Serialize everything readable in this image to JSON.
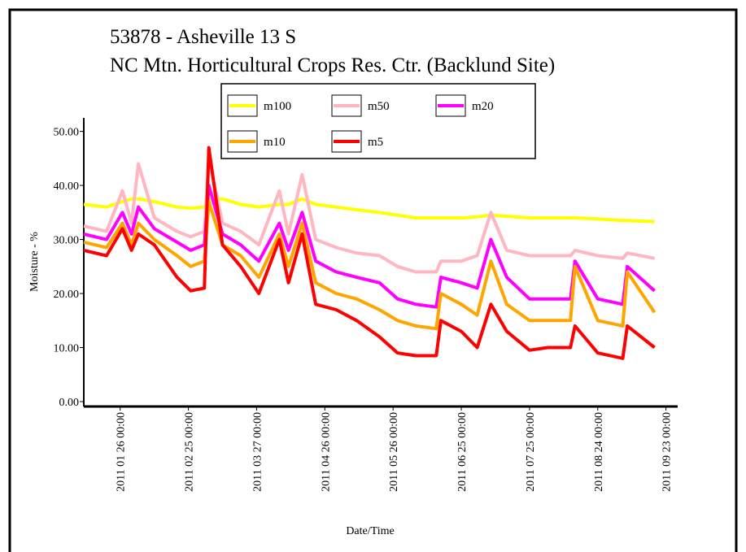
{
  "chart_data": {
    "type": "line",
    "title": "53878 - Asheville 13 S",
    "subtitle": "NC Mtn. Horticultural Crops Res. Ctr. (Backlund Site)",
    "x_label": "Date/Time",
    "y_label": "Moisture - %",
    "x": [
      "2011-01-10",
      "2011-01-20",
      "2011-01-27",
      "2011-01-31",
      "2011-02-03",
      "2011-02-10",
      "2011-02-20",
      "2011-02-26",
      "2011-03-04",
      "2011-03-06",
      "2011-03-12",
      "2011-03-20",
      "2011-03-28",
      "2011-04-06",
      "2011-04-10",
      "2011-04-16",
      "2011-04-22",
      "2011-05-01",
      "2011-05-10",
      "2011-05-20",
      "2011-05-28",
      "2011-06-05",
      "2011-06-14",
      "2011-06-16",
      "2011-06-25",
      "2011-07-02",
      "2011-07-08",
      "2011-07-15",
      "2011-07-25",
      "2011-08-02",
      "2011-08-12",
      "2011-08-14",
      "2011-08-24",
      "2011-09-04",
      "2011-09-06",
      "2011-09-18"
    ],
    "xlim": [
      "2011-01-10",
      "2011-09-26"
    ],
    "xticks": [
      {
        "value": "2011-01-26",
        "label": "2011 01 26 00:00"
      },
      {
        "value": "2011-02-25",
        "label": "2011 02 25 00:00"
      },
      {
        "value": "2011-03-27",
        "label": "2011 03 27 00:00"
      },
      {
        "value": "2011-04-26",
        "label": "2011 04 26 00:00"
      },
      {
        "value": "2011-05-26",
        "label": "2011 05 26 00:00"
      },
      {
        "value": "2011-06-25",
        "label": "2011 06 25 00:00"
      },
      {
        "value": "2011-07-25",
        "label": "2011 07 25 00:00"
      },
      {
        "value": "2011-08-24",
        "label": "2011 08 24 00:00"
      },
      {
        "value": "2011-09-23",
        "label": "2011 09 23 00:00"
      }
    ],
    "ylim": [
      0,
      52.5
    ],
    "yticks": [
      {
        "value": 0,
        "label": "0.00"
      },
      {
        "value": 10,
        "label": "10.00"
      },
      {
        "value": 20,
        "label": "20.00"
      },
      {
        "value": 30,
        "label": "30.00"
      },
      {
        "value": 40,
        "label": "40.00"
      },
      {
        "value": 50,
        "label": "50.00"
      }
    ],
    "series": [
      {
        "name": "m100",
        "color": "#ffff00",
        "values": [
          36.5,
          36,
          37,
          37.5,
          37.5,
          37,
          36,
          35.8,
          36,
          37.5,
          37.5,
          36.5,
          36,
          36.5,
          36.5,
          37.5,
          36.5,
          36,
          35.5,
          35,
          34.5,
          34,
          34,
          34,
          34,
          34.2,
          34.5,
          34.3,
          34,
          34,
          34,
          34,
          33.8,
          33.5,
          33.5,
          33.3
        ]
      },
      {
        "name": "m50",
        "color": "#ffb6c1",
        "values": [
          32.5,
          31.5,
          39,
          33,
          44,
          34,
          31.5,
          30.5,
          31.5,
          45,
          33,
          31.5,
          29,
          39,
          31,
          42,
          30,
          28.5,
          27.5,
          27,
          25,
          24,
          24,
          26,
          26,
          27,
          35,
          28,
          27,
          27,
          27,
          28,
          27,
          26.5,
          27.5,
          26.5
        ]
      },
      {
        "name": "m20",
        "color": "#ff00ff",
        "values": [
          31,
          30,
          35,
          31,
          36,
          32,
          29.5,
          28,
          29,
          40,
          31,
          29,
          26,
          33,
          28,
          35,
          26,
          24,
          23,
          22,
          19,
          18,
          17.5,
          23,
          22,
          21,
          30,
          23,
          19,
          19,
          19,
          26,
          19,
          18,
          25,
          20.5
        ]
      },
      {
        "name": "m10",
        "color": "#ffa500",
        "values": [
          29.5,
          28.5,
          33,
          29,
          33,
          30,
          27,
          25,
          26,
          37,
          29,
          27,
          23,
          31,
          25,
          33,
          22,
          20,
          19,
          17,
          15,
          14,
          13.5,
          20,
          18,
          16,
          26,
          18,
          15,
          15,
          15,
          25,
          15,
          14,
          24,
          16.5
        ]
      },
      {
        "name": "m5",
        "color": "#ff0000",
        "values": [
          28,
          27,
          32,
          28,
          31,
          29,
          23,
          20.5,
          21,
          47,
          29,
          25,
          20,
          30,
          22,
          31,
          18,
          17,
          15,
          12,
          9,
          8.5,
          8.5,
          15,
          13,
          10,
          18,
          13,
          9.5,
          10,
          10,
          14,
          9,
          8,
          14,
          10
        ]
      }
    ]
  }
}
